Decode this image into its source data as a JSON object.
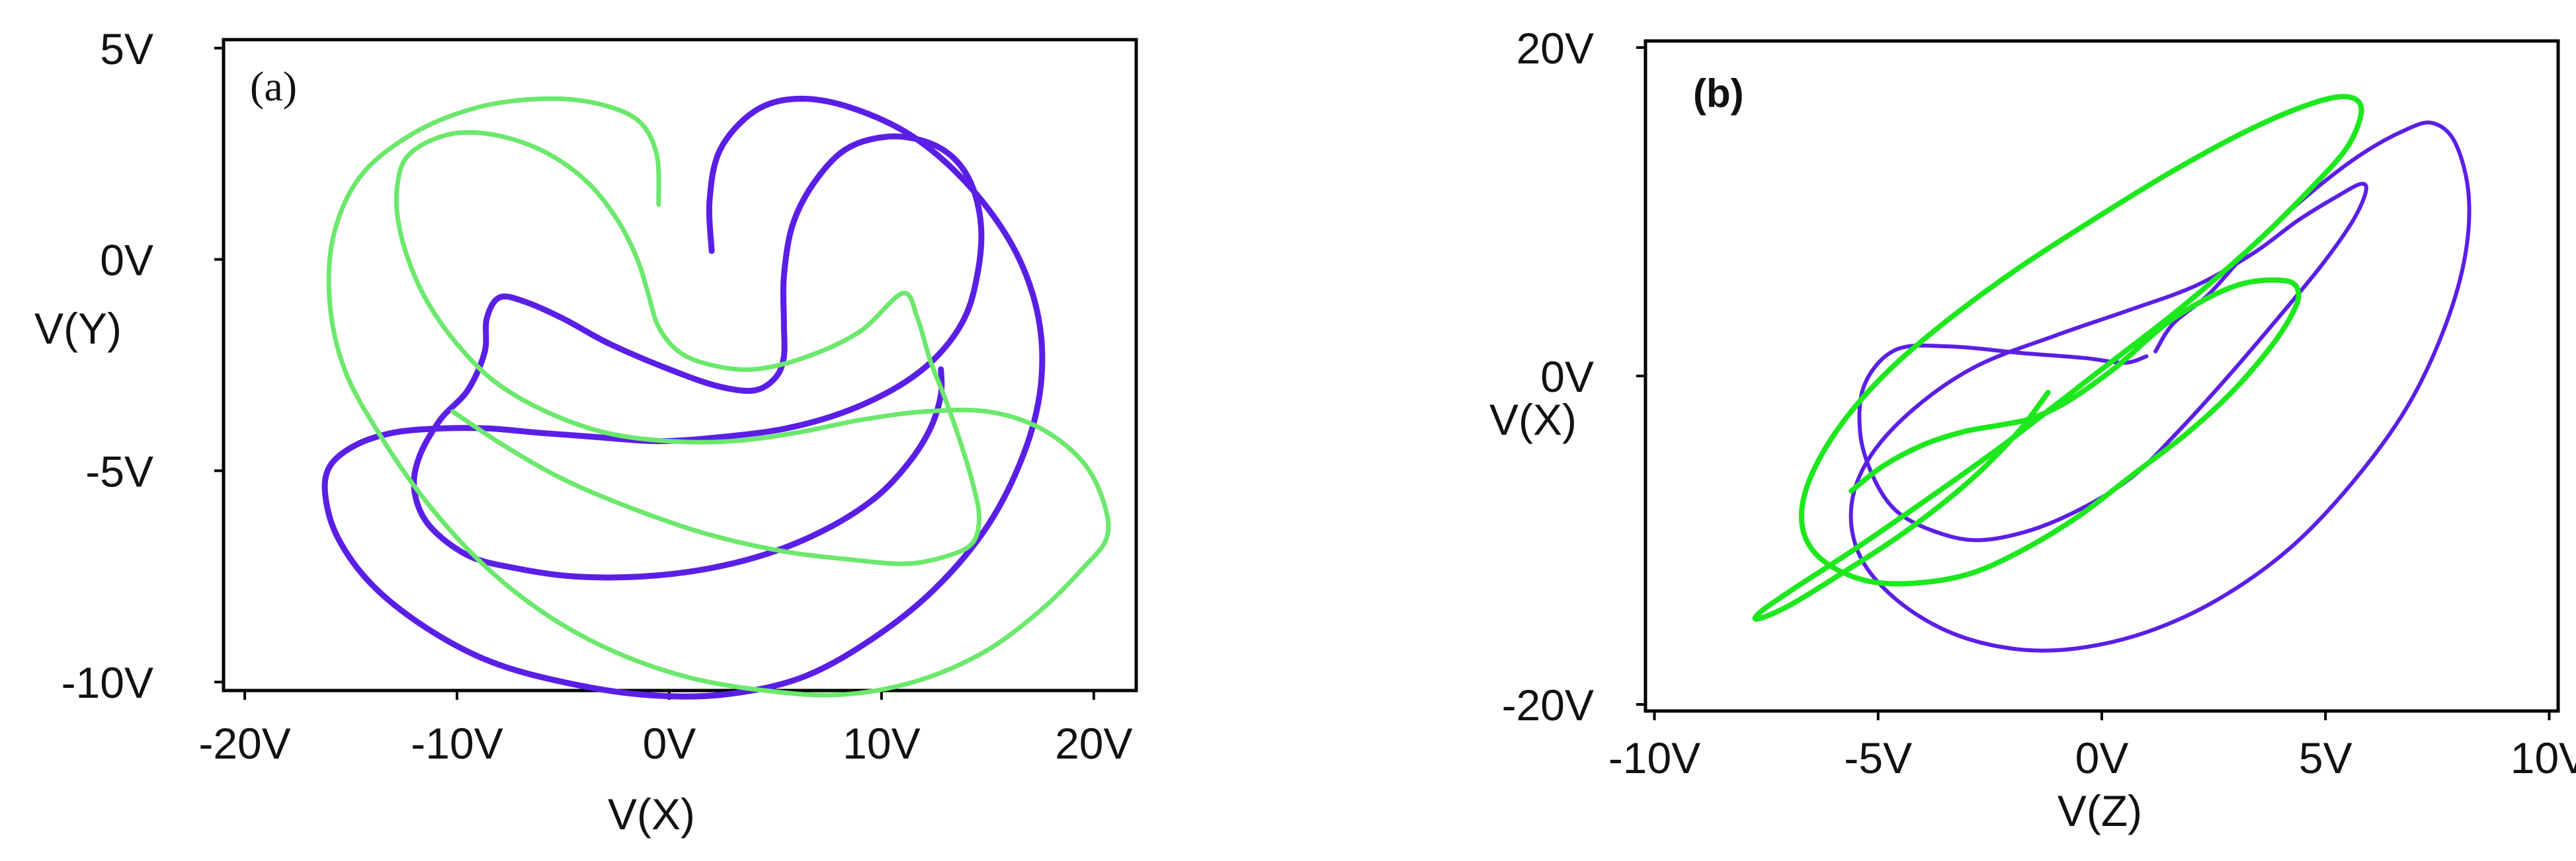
{
  "colors": {
    "blue_series": "#5a1fe6",
    "green_series_a": "#6ce86c",
    "green_series_b": "#1de81d",
    "axis": "#000000",
    "text": "#111111"
  },
  "chart_data": [
    {
      "type": "line",
      "panel_label": "(a)",
      "xlabel": "V(X)",
      "ylabel": "V(Y)",
      "x_ticks": [
        "-20V",
        "-10V",
        "0V",
        "10V",
        "20V"
      ],
      "x_tick_values": [
        -20,
        -10,
        0,
        10,
        20
      ],
      "y_ticks": [
        "5V",
        "0V",
        "-5V",
        "-10V"
      ],
      "y_tick_values": [
        5,
        0,
        -5,
        -10
      ],
      "xlim": [
        -21,
        22
      ],
      "ylim": [
        -10.2,
        5.2
      ],
      "grid": false,
      "series": [
        {
          "color": "#5a1fe6",
          "x": [
            2.0,
            1.9,
            2.4,
            4.0,
            6.0,
            8.5,
            11.5,
            14.2,
            16.3,
            17.4,
            17.5,
            16.7,
            15.0,
            12.5,
            9.5,
            6.2,
            2.5,
            -1.2,
            -5.0,
            -8.5,
            -11.5,
            -14.0,
            -15.6,
            -16.2,
            -16.0,
            -14.8,
            -13.0,
            -10.8,
            -8.5,
            -6.2,
            -3.5,
            -0.5,
            2.5,
            5.5,
            8.3,
            10.8,
            12.6,
            13.9,
            14.5,
            14.7,
            14.3,
            13.4,
            12.0,
            10.2,
            8.3,
            6.8,
            5.8,
            5.4,
            5.4,
            5.4,
            5.0,
            4.0,
            2.3,
            0.0,
            -2.8,
            -5.0,
            -6.8,
            -8.0,
            -8.6,
            -8.7,
            -9.5,
            -10.8,
            -11.8,
            -12.0,
            -11.3,
            -9.5,
            -7.3,
            -4.5,
            -1.2,
            2.0,
            5.0,
            7.7,
            9.8,
            11.3,
            12.3,
            12.8,
            12.8
          ],
          "y": [
            0.2,
            1.4,
            2.6,
            3.5,
            3.8,
            3.6,
            2.9,
            1.7,
            0.2,
            -1.4,
            -3.0,
            -4.6,
            -6.3,
            -7.8,
            -9.0,
            -9.9,
            -10.3,
            -10.3,
            -10.0,
            -9.5,
            -8.7,
            -7.7,
            -6.6,
            -5.6,
            -4.9,
            -4.4,
            -4.1,
            -4.0,
            -4.0,
            -4.1,
            -4.2,
            -4.3,
            -4.2,
            -4.0,
            -3.6,
            -3.0,
            -2.3,
            -1.4,
            -0.4,
            0.7,
            1.7,
            2.4,
            2.8,
            2.9,
            2.6,
            1.8,
            0.8,
            -0.4,
            -1.5,
            -2.3,
            -2.8,
            -3.1,
            -3.0,
            -2.6,
            -2.0,
            -1.4,
            -1.0,
            -0.9,
            -1.4,
            -2.2,
            -3.1,
            -3.8,
            -4.7,
            -5.5,
            -6.3,
            -7.0,
            -7.3,
            -7.5,
            -7.5,
            -7.3,
            -6.9,
            -6.3,
            -5.6,
            -4.8,
            -4.0,
            -3.2,
            -2.6
          ]
        },
        {
          "color": "#6ce86c",
          "x": [
            -0.5,
            -0.6,
            -1.5,
            -3.5,
            -6.0,
            -9.0,
            -12.0,
            -14.5,
            -15.8,
            -16.0,
            -15.3,
            -13.7,
            -11.5,
            -8.8,
            -5.8,
            -2.5,
            1.0,
            4.5,
            8.0,
            11.5,
            14.8,
            17.5,
            19.5,
            20.6,
            20.5,
            19.5,
            17.5,
            15.0,
            12.0,
            9.0,
            6.0,
            3.0,
            0.0,
            -3.0,
            -5.8,
            -8.2,
            -10.0,
            -11.4,
            -12.3,
            -12.8,
            -12.8,
            -12.4,
            -11.3,
            -9.8,
            -7.8,
            -5.7,
            -3.8,
            -2.4,
            -1.5,
            -1.0,
            -0.5,
            0.5,
            2.0,
            4.0,
            6.5,
            9.0,
            11.0,
            11.7,
            12.3,
            13.0,
            13.7,
            14.3,
            14.6,
            14.3,
            13.2,
            11.2,
            8.5,
            5.3,
            1.8,
            -1.7,
            -5.0,
            -7.8,
            -10.2
          ],
          "y": [
            1.3,
            2.5,
            3.3,
            3.7,
            3.8,
            3.6,
            3.0,
            2.0,
            0.6,
            -1.0,
            -2.6,
            -4.1,
            -5.7,
            -7.2,
            -8.4,
            -9.3,
            -9.9,
            -10.2,
            -10.3,
            -10.0,
            -9.3,
            -8.3,
            -7.3,
            -6.6,
            -5.8,
            -4.8,
            -4.0,
            -3.6,
            -3.6,
            -3.8,
            -4.1,
            -4.3,
            -4.3,
            -4.1,
            -3.6,
            -2.9,
            -2.0,
            -1.0,
            0.0,
            1.0,
            1.8,
            2.4,
            2.8,
            3.0,
            2.9,
            2.5,
            1.8,
            0.9,
            0.0,
            -0.8,
            -1.6,
            -2.2,
            -2.5,
            -2.6,
            -2.3,
            -1.7,
            -0.8,
            -1.4,
            -2.4,
            -3.3,
            -4.3,
            -5.3,
            -6.1,
            -6.7,
            -7.0,
            -7.2,
            -7.1,
            -6.9,
            -6.5,
            -5.9,
            -5.2,
            -4.4,
            -3.6
          ]
        }
      ]
    },
    {
      "type": "line",
      "panel_label": "(b)",
      "xlabel": "V(Z)",
      "ylabel": "V(X)",
      "x_ticks": [
        "-10V",
        "-5V",
        "0V",
        "5V",
        "10V"
      ],
      "x_tick_values": [
        -10,
        -5,
        0,
        5,
        10
      ],
      "y_ticks": [
        "20V",
        "0V",
        "-20V"
      ],
      "y_tick_values": [
        20,
        0,
        -20
      ],
      "xlim": [
        -10.2,
        10.2
      ],
      "ylim": [
        -20.4,
        20.4
      ],
      "grid": false,
      "series": [
        {
          "color": "#5a1fe6",
          "x": [
            1.2,
            1.6,
            2.4,
            3.4,
            4.6,
            5.8,
            6.8,
            7.4,
            7.9,
            8.2,
            8.1,
            7.6,
            6.8,
            5.6,
            4.2,
            2.6,
            1.0,
            -0.6,
            -2.0,
            -3.4,
            -4.6,
            -5.4,
            -5.6,
            -5.2,
            -4.2,
            -2.8,
            -1.0,
            0.6,
            2.1,
            3.4,
            4.4,
            5.3,
            5.8,
            5.9,
            5.6,
            4.9,
            3.9,
            2.8,
            1.7,
            0.7,
            -0.4,
            -1.6,
            -2.8,
            -3.8,
            -4.6,
            -5.1,
            -5.4,
            -5.3,
            -4.6,
            -3.4,
            -1.8,
            -0.4,
            0.5,
            1.0
          ],
          "y": [
            1.5,
            3.2,
            5.0,
            8.0,
            11.0,
            13.5,
            15.0,
            15.4,
            14.2,
            11.0,
            7.0,
            2.5,
            -2.0,
            -6.5,
            -10.5,
            -13.6,
            -15.6,
            -16.6,
            -16.6,
            -15.6,
            -13.6,
            -11.0,
            -8.0,
            -5.0,
            -2.0,
            0.6,
            2.5,
            4.0,
            5.5,
            7.5,
            9.5,
            11.0,
            11.7,
            11.2,
            9.4,
            6.7,
            3.4,
            -0.1,
            -3.4,
            -6.1,
            -8.0,
            -9.4,
            -10.0,
            -9.4,
            -8.2,
            -6.2,
            -3.5,
            -0.5,
            1.6,
            1.8,
            1.4,
            1.1,
            0.8,
            1.2
          ]
        },
        {
          "color": "#1de81d",
          "x": [
            -1.2,
            -1.9,
            -3.0,
            -4.4,
            -5.8,
            -7.0,
            -7.7,
            -7.6,
            -6.8,
            -5.5,
            -3.9,
            -2.1,
            -0.2,
            1.7,
            3.4,
            4.7,
            5.5,
            5.8,
            5.5,
            4.7,
            3.3,
            1.6,
            -0.2,
            -1.9,
            -3.4,
            -4.7,
            -5.7,
            -6.4,
            -6.7,
            -6.6,
            -6.1,
            -5.2,
            -4.1,
            -2.9,
            -1.7,
            -0.5,
            0.7,
            1.9,
            2.9,
            3.7,
            4.2,
            4.4,
            4.1,
            3.0,
            1.6,
            0.3,
            -0.8,
            -1.6,
            -2.3,
            -3.1,
            -4.0,
            -4.9,
            -5.6
          ],
          "y": [
            -1.0,
            -3.5,
            -6.5,
            -9.5,
            -12.0,
            -14.0,
            -14.8,
            -14.3,
            -12.8,
            -10.5,
            -7.5,
            -4.0,
            0.0,
            4.0,
            8.0,
            11.5,
            14.0,
            16.2,
            17.0,
            16.6,
            15.0,
            12.5,
            9.5,
            6.5,
            3.5,
            0.5,
            -2.5,
            -5.5,
            -8.0,
            -10.0,
            -11.5,
            -12.5,
            -12.6,
            -12.0,
            -10.5,
            -8.5,
            -6.0,
            -3.5,
            -1.0,
            1.5,
            3.5,
            5.0,
            5.8,
            5.5,
            3.5,
            0.5,
            -1.6,
            -2.6,
            -3.0,
            -3.4,
            -4.2,
            -5.5,
            -7.0
          ]
        }
      ]
    }
  ]
}
